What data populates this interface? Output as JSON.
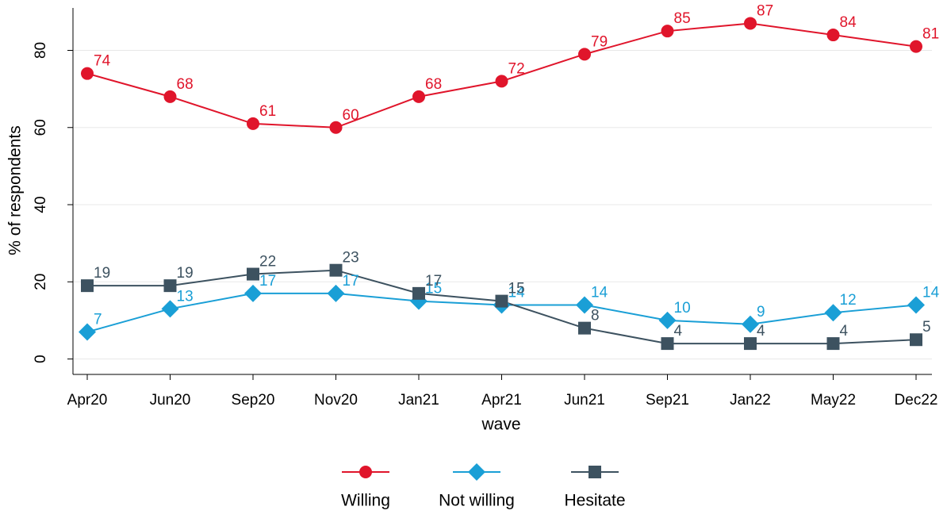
{
  "chart_data": {
    "type": "line",
    "y_label": "% of respondents",
    "x_label": "wave",
    "categories": [
      "Apr20",
      "Jun20",
      "Sep20",
      "Nov20",
      "Jan21",
      "Apr21",
      "Jun21",
      "Sep21",
      "Jan22",
      "May22",
      "Dec22"
    ],
    "series": [
      {
        "name": "Willing",
        "color": "#e0152b",
        "marker": "circle",
        "values": [
          74,
          68,
          61,
          60,
          68,
          72,
          79,
          85,
          87,
          84,
          81
        ]
      },
      {
        "name": "Not willing",
        "color": "#1a9fd6",
        "marker": "diamond",
        "values": [
          7,
          13,
          17,
          17,
          15,
          14,
          14,
          10,
          9,
          12,
          14
        ]
      },
      {
        "name": "Hesitate",
        "color": "#3d5260",
        "marker": "square",
        "values": [
          19,
          19,
          22,
          23,
          17,
          15,
          8,
          4,
          4,
          4,
          5
        ]
      }
    ],
    "ylim": [
      -4,
      91
    ],
    "yticks": [
      0,
      20,
      40,
      60,
      80
    ],
    "grid": true,
    "legend": "bottom"
  }
}
